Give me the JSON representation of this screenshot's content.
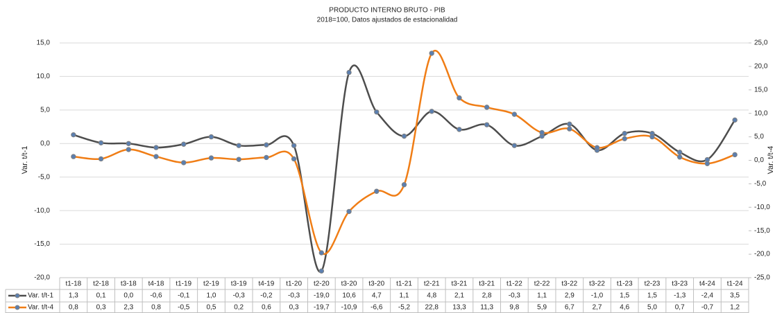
{
  "chart_data": {
    "type": "line",
    "title": "PRODUCTO INTERNO BRUTO - PIB",
    "subtitle": "2018=100, Datos ajustados de estacionalidad",
    "ylabel": "Var. t/t-1",
    "y2label": "Var. t/t-4",
    "categories": [
      "t1-18",
      "t2-18",
      "t3-18",
      "t4-18",
      "t1-19",
      "t2-19",
      "t3-19",
      "t4-19",
      "t1-20",
      "t2-20",
      "t3-20",
      "t3-20",
      "t1-21",
      "t2-21",
      "t3-21",
      "t3-21",
      "t1-22",
      "t2-22",
      "t3-22",
      "t3-22",
      "t1-23",
      "t2-23",
      "t3-23",
      "t4-24",
      "t1-24"
    ],
    "series": [
      {
        "name": "Var. t/t-1",
        "color": "#4d4d4d",
        "values": [
          1.3,
          0.1,
          0.0,
          -0.6,
          -0.1,
          1.0,
          -0.3,
          -0.2,
          -0.3,
          -19.0,
          10.6,
          4.7,
          1.1,
          4.8,
          2.1,
          2.8,
          -0.3,
          1.1,
          2.9,
          -1.0,
          1.5,
          1.5,
          -1.3,
          -2.4,
          3.5
        ],
        "value_labels": [
          "1,3",
          "0,1",
          "0,0",
          "-0,6",
          "-0,1",
          "1,0",
          "-0,3",
          "-0,2",
          "-0,3",
          "-19,0",
          "10,6",
          "4,7",
          "1,1",
          "4,8",
          "2,1",
          "2,8",
          "-0,3",
          "1,1",
          "2,9",
          "-1,0",
          "1,5",
          "1,5",
          "-1,3",
          "-2,4",
          "3,5"
        ]
      },
      {
        "name": "Var. t/t-4",
        "color": "#f07d15",
        "axis": "y2",
        "values": [
          0.8,
          0.3,
          2.3,
          0.8,
          -0.5,
          0.5,
          0.2,
          0.6,
          0.3,
          -19.7,
          -10.9,
          -6.6,
          -5.2,
          22.8,
          13.3,
          11.3,
          9.8,
          5.9,
          6.7,
          2.7,
          4.6,
          5.0,
          0.7,
          -0.7,
          1.2
        ],
        "value_labels": [
          "0,8",
          "0,3",
          "2,3",
          "0,8",
          "-0,5",
          "0,5",
          "0,2",
          "0,6",
          "0,3",
          "-19,7",
          "-10,9",
          "-6,6",
          "-5,2",
          "22,8",
          "13,3",
          "11,3",
          "9,8",
          "5,9",
          "6,7",
          "2,7",
          "4,6",
          "5,0",
          "0,7",
          "-0,7",
          "1,2"
        ]
      }
    ],
    "marker_color": "#5b7fb0",
    "ylim": [
      -20,
      15
    ],
    "yticks": [
      {
        "value": -20,
        "label": "-20,0"
      },
      {
        "value": -15,
        "label": "-15,0"
      },
      {
        "value": -10,
        "label": "-10,0"
      },
      {
        "value": -5,
        "label": "-5,0"
      },
      {
        "value": 0,
        "label": "0,0"
      },
      {
        "value": 5,
        "label": "5,0"
      },
      {
        "value": 10,
        "label": "10,0"
      },
      {
        "value": 15,
        "label": "15,0"
      }
    ],
    "y2lim": [
      -25,
      25
    ],
    "y2ticks": [
      {
        "value": -25,
        "label": "-25,0"
      },
      {
        "value": -20,
        "label": "-20,0"
      },
      {
        "value": -15,
        "label": "-15,0"
      },
      {
        "value": -10,
        "label": "-10,0"
      },
      {
        "value": -5,
        "label": "-5,0"
      },
      {
        "value": 0,
        "label": "0,0"
      },
      {
        "value": 5,
        "label": "5,0"
      },
      {
        "value": 10,
        "label": "10,0"
      },
      {
        "value": 15,
        "label": "15,0"
      },
      {
        "value": 20,
        "label": "20,0"
      },
      {
        "value": 25,
        "label": "25,0"
      }
    ],
    "grid": true
  }
}
